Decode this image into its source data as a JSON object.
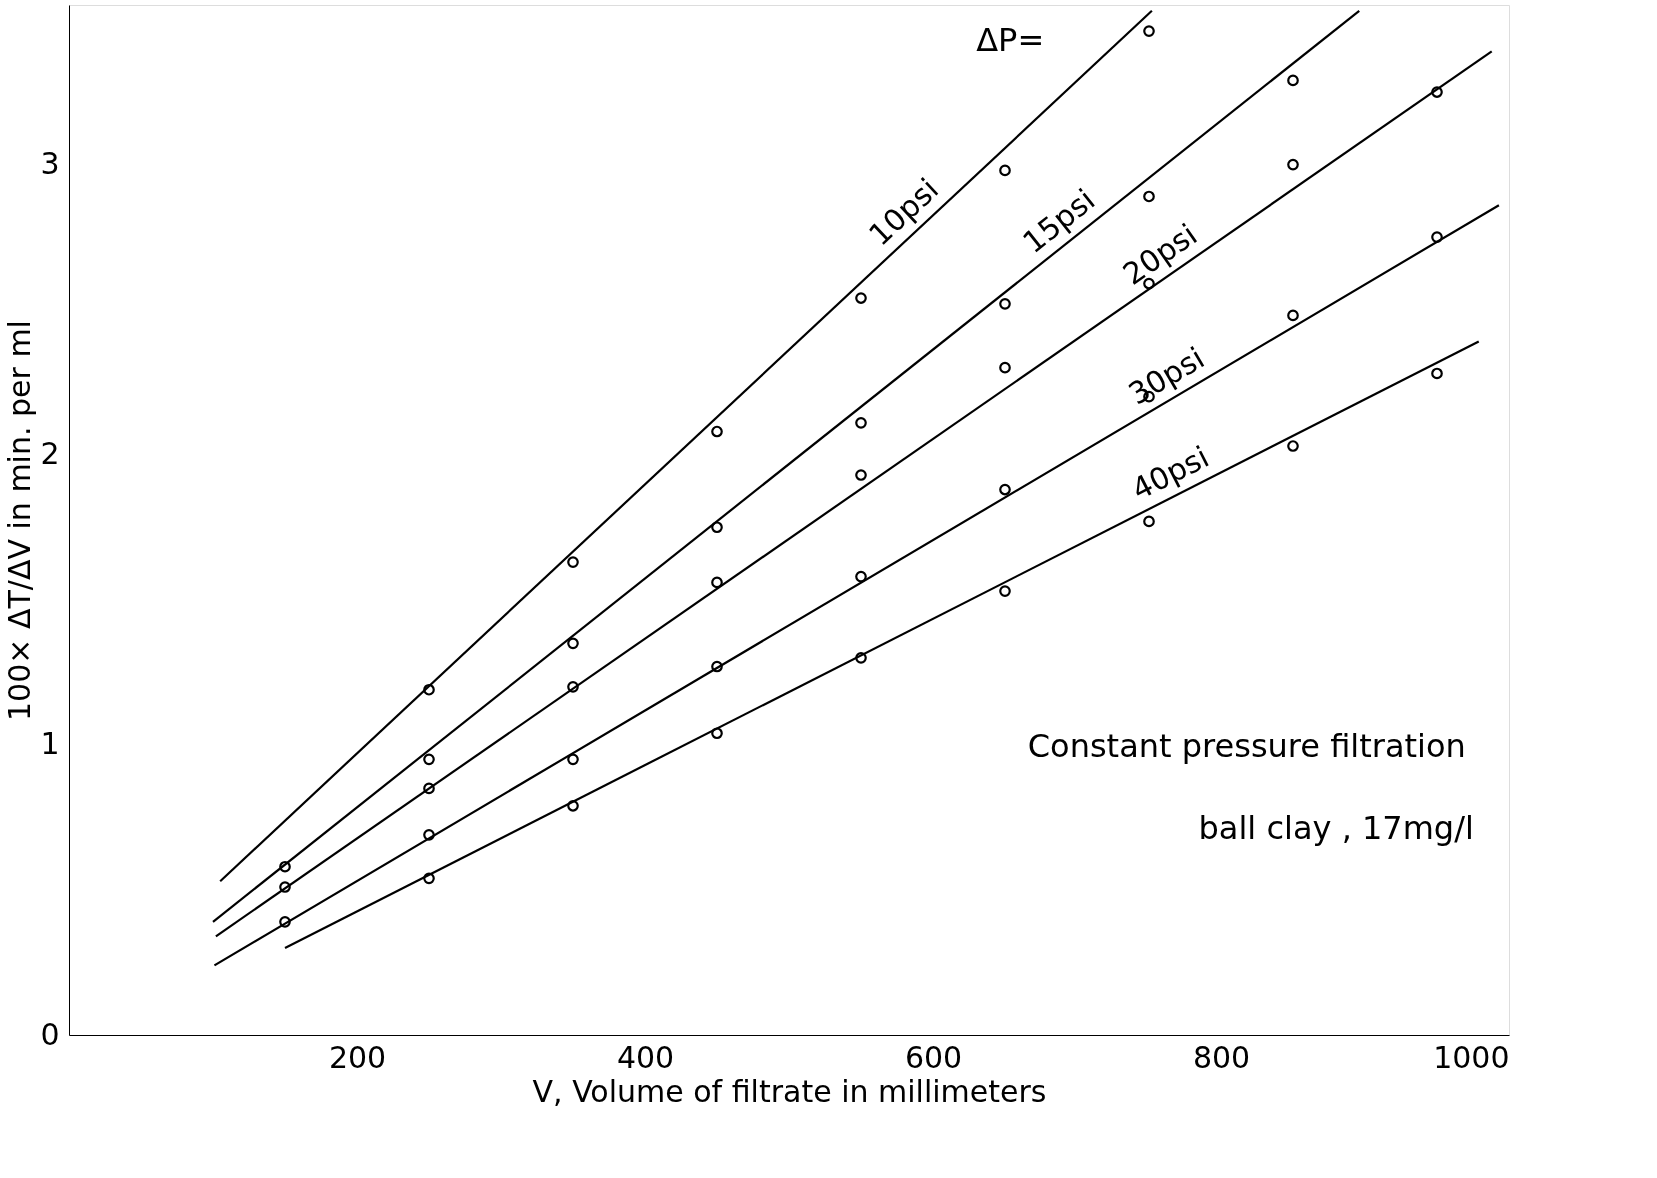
{
  "chart_data": {
    "type": "scatter",
    "xlabel": "V,  Volume  of  filtrate  in  millimeters",
    "ylabel": "100× ΔT/ΔV  in  min.  per  ml",
    "annotations": [
      "ΔP=",
      "Constant  pressure  filtration",
      "ball  clay ,  17mg/l"
    ],
    "xlim": [
      0,
      1000
    ],
    "ylim": [
      0,
      3.55
    ],
    "xticks": [
      200,
      400,
      600,
      800,
      1000
    ],
    "yticks": [
      0,
      1,
      2,
      3
    ],
    "marker": "circle",
    "series": [
      {
        "type": "line",
        "name": "10psi",
        "color": "#000000",
        "x": [
          105,
          752
        ],
        "values": [
          0.53,
          3.53
        ],
        "marker": "none"
      },
      {
        "type": "line",
        "name": "15psi",
        "color": "#000000",
        "x": [
          100,
          896
        ],
        "values": [
          0.39,
          3.53
        ],
        "marker": "none"
      },
      {
        "type": "line",
        "name": "20psi",
        "color": "#000000",
        "x": [
          102,
          988
        ],
        "values": [
          0.34,
          3.39
        ],
        "marker": "none"
      },
      {
        "type": "line",
        "name": "30psi",
        "color": "#000000",
        "x": [
          101,
          993
        ],
        "values": [
          0.24,
          2.86
        ],
        "marker": "none"
      },
      {
        "type": "line",
        "name": "40psi",
        "color": "#000000",
        "x": [
          150,
          979
        ],
        "values": [
          0.3,
          2.39
        ],
        "marker": "none"
      },
      {
        "color": "#000000",
        "x": [
          250,
          350,
          450,
          550,
          650,
          750
        ],
        "values": [
          1.19,
          1.63,
          2.08,
          2.54,
          2.98,
          3.46
        ]
      },
      {
        "color": "#000000",
        "x": [
          150,
          250,
          350,
          450,
          550,
          650,
          750,
          850
        ],
        "values": [
          0.58,
          0.95,
          1.35,
          1.75,
          2.11,
          2.52,
          2.89,
          3.29
        ]
      },
      {
        "color": "#000000",
        "x": [
          150,
          250,
          350,
          450,
          550,
          650,
          750,
          850,
          950
        ],
        "values": [
          0.51,
          0.85,
          1.2,
          1.56,
          1.93,
          2.3,
          2.59,
          3.0,
          3.25
        ]
      },
      {
        "color": "#000000",
        "x": [
          150,
          250,
          350,
          450,
          550,
          650,
          750,
          850,
          950
        ],
        "values": [
          0.39,
          0.69,
          0.95,
          1.27,
          1.58,
          1.88,
          2.2,
          2.48,
          2.75
        ]
      },
      {
        "color": "#000000",
        "x": [
          250,
          350,
          450,
          550,
          650,
          750,
          850,
          950
        ],
        "values": [
          0.54,
          0.79,
          1.04,
          1.3,
          1.53,
          1.77,
          2.03,
          2.28
        ]
      }
    ]
  }
}
